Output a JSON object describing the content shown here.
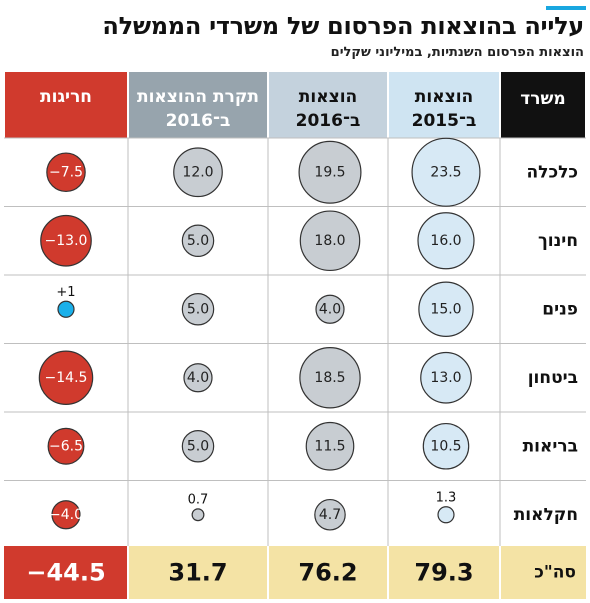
{
  "title": "עלייה בהוצאות הפרסום של משרדי הממשלה",
  "subtitle": "הוצאות הפרסום השנתיות, במיליוני שקלים",
  "colors": {
    "accent": "#19a7e0",
    "col_ministry_header": "#111111",
    "col_2015_header": "#cfe4f2",
    "col_2016_header": "#c4d2dd",
    "col_budget_header": "#97a4ad",
    "col_overrun_header": "#d03a2d",
    "bubble_blue": "#d7e9f5",
    "bubble_grey": "#c8cdd2",
    "bubble_red": "#d03a2d",
    "bubble_cyan": "#1ab0ea",
    "total_row": "#f4e3a5",
    "total_overrun": "#d03a2d"
  },
  "chart_data": {
    "type": "table",
    "columns": [
      {
        "key": "ministry",
        "header": [
          "משרד"
        ]
      },
      {
        "key": "spend_2015",
        "header": [
          "הוצאות",
          "ב־2015"
        ]
      },
      {
        "key": "spend_2016",
        "header": [
          "הוצאות",
          "ב־2016"
        ]
      },
      {
        "key": "budget_2016",
        "header": [
          "תקרת ההוצאות",
          "ב־2016"
        ]
      },
      {
        "key": "overrun",
        "header": [
          "חריגות"
        ]
      }
    ],
    "rows": [
      {
        "ministry": "כלכלה",
        "spend_2015": 23.5,
        "spend_2016": 19.5,
        "budget_2016": 12.0,
        "overrun": -7.5,
        "labels": {
          "spend_2015": "23.5",
          "spend_2016": "19.5",
          "budget_2016": "12.0",
          "overrun": "−7.5"
        }
      },
      {
        "ministry": "חינוך",
        "spend_2015": 16.0,
        "spend_2016": 18.0,
        "budget_2016": 5.0,
        "overrun": -13.0,
        "labels": {
          "spend_2015": "16.0",
          "spend_2016": "18.0",
          "budget_2016": "5.0",
          "overrun": "−13.0"
        }
      },
      {
        "ministry": "פנים",
        "spend_2015": 15.0,
        "spend_2016": 4.0,
        "budget_2016": 5.0,
        "overrun": 1,
        "labels": {
          "spend_2015": "15.0",
          "spend_2016": "4.0",
          "budget_2016": "5.0",
          "overrun": "+1"
        }
      },
      {
        "ministry": "ביטחון",
        "spend_2015": 13.0,
        "spend_2016": 18.5,
        "budget_2016": 4.0,
        "overrun": -14.5,
        "labels": {
          "spend_2015": "13.0",
          "spend_2016": "18.5",
          "budget_2016": "4.0",
          "overrun": "−14.5"
        }
      },
      {
        "ministry": "בריאות",
        "spend_2015": 10.5,
        "spend_2016": 11.5,
        "budget_2016": 5.0,
        "overrun": -6.5,
        "labels": {
          "spend_2015": "10.5",
          "spend_2016": "11.5",
          "budget_2016": "5.0",
          "overrun": "−6.5"
        }
      },
      {
        "ministry": "חקלאות",
        "spend_2015": 1.3,
        "spend_2016": 4.7,
        "budget_2016": 0.7,
        "overrun": -4.0,
        "labels": {
          "spend_2015": "1.3",
          "spend_2016": "4.7",
          "budget_2016": "0.7",
          "overrun": "−4.0"
        }
      }
    ],
    "totals": {
      "ministry": "סה\"כ",
      "spend_2015": "79.3",
      "spend_2016": "76.2",
      "budget_2016": "31.7",
      "overrun": "−44.5"
    }
  }
}
